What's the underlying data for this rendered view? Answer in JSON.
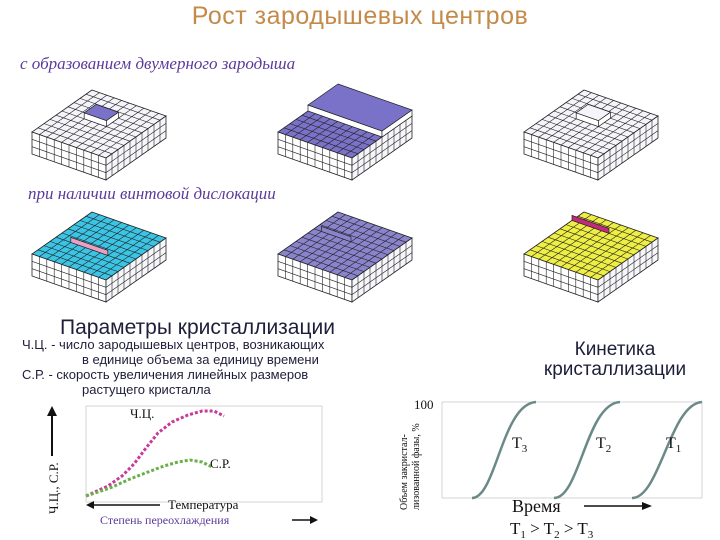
{
  "title": "Рост зародышевых центров",
  "subtitles": {
    "two_dim": "с образованием двумерного зародыша",
    "screw": "при наличии винтовой дислокации"
  },
  "params": {
    "title": "Параметры кристаллизации",
    "nc_line1": "Ч.Ц.  -  число зародышевых центров, возникающих",
    "nc_line2": "в единице объема за единицу времени",
    "sr_line1": "С.Р.  -  скорость увеличения линейных размеров",
    "sr_line2": "растущего кристалла"
  },
  "kinetics_title": {
    "line1": "Кинетика",
    "line2": "кристаллизации"
  },
  "colors": {
    "grid_white": "#f4f4fa",
    "grid_purple": "#7a72c8",
    "grid_cyan": "#3cc4e4",
    "grid_lavender": "#8a84cc",
    "grid_yellow": "#eeee44",
    "step_pink": "#c22a7a",
    "curve_nc": "#c83a9a",
    "curve_sr": "#6ab04a",
    "curve_kinetic": "#6a8a88"
  },
  "left_chart": {
    "y_label": "Ч.Ц., С.Р.",
    "curve_nc_label": "Ч.Ц.",
    "curve_sr_label": "С.Р.",
    "x_label": "Температура",
    "x_label2": "Степень переохлаждения"
  },
  "right_chart": {
    "y_label_line1": "Объем закристал-",
    "y_label_line2": "лизованной фазы, %",
    "y_tick": "100",
    "curves": [
      "T3",
      "T2",
      "T1"
    ],
    "x_label": "Время",
    "relation": "T1 > T2 > T3"
  }
}
